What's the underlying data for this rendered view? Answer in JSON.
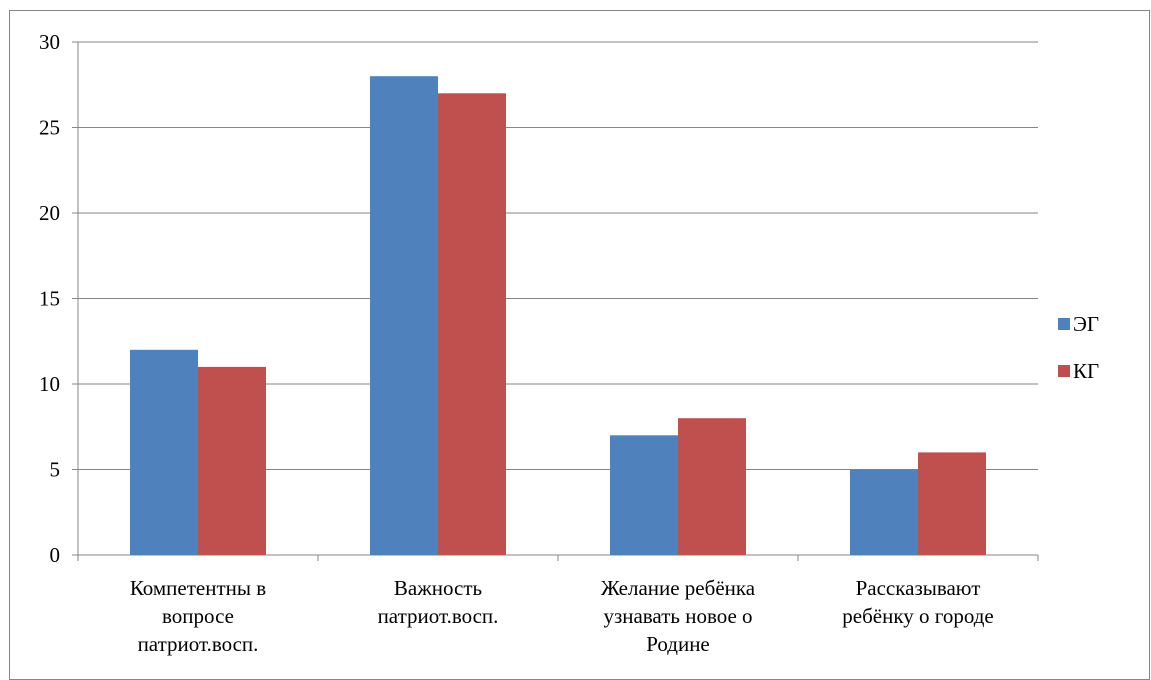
{
  "chart_data": {
    "type": "bar",
    "categories": [
      [
        "Компетентны в",
        "вопросе",
        "патриот.восп."
      ],
      [
        "Важность",
        "патриот.восп."
      ],
      [
        "Желание ребёнка",
        "узнавать новое о",
        "Родине"
      ],
      [
        "Рассказывают",
        "ребёнку о городе"
      ]
    ],
    "series": [
      {
        "name": "ЭГ",
        "values": [
          12,
          28,
          7,
          5
        ],
        "color": "#4f81bd"
      },
      {
        "name": "КГ",
        "values": [
          11,
          27,
          8,
          6
        ],
        "color": "#c0504d"
      }
    ],
    "yticks": [
      0,
      5,
      10,
      15,
      20,
      25,
      30
    ],
    "ylim": [
      0,
      30
    ],
    "grid": true,
    "legend_position": "right"
  }
}
